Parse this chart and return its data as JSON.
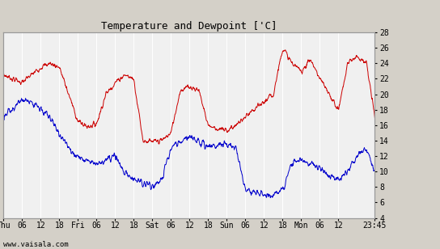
{
  "title": "Temperature and Dewpoint ['C]",
  "yticks": [
    4,
    6,
    8,
    10,
    12,
    14,
    16,
    18,
    20,
    22,
    24,
    26,
    28
  ],
  "ylim": [
    4,
    28
  ],
  "bg_color": "#d4d0c8",
  "plot_bg": "#f0f0f0",
  "grid_color": "#ffffff",
  "temp_color": "#cc0000",
  "dew_color": "#0000cc",
  "footer": "www.vaisala.com",
  "xtick_labels": [
    "Thu",
    "06",
    "12",
    "18",
    "Fri",
    "06",
    "12",
    "18",
    "Sat",
    "06",
    "12",
    "18",
    "Sun",
    "06",
    "12",
    "18",
    "Mon",
    "06",
    "12",
    "23:45"
  ],
  "xtick_positions": [
    0,
    6,
    12,
    18,
    24,
    30,
    36,
    42,
    48,
    54,
    60,
    66,
    72,
    78,
    84,
    90,
    96,
    102,
    108,
    119.75
  ],
  "xlim": [
    0,
    119.75
  ],
  "total_hours": 119.75,
  "temp_ctrl_t": [
    0,
    3,
    6,
    9,
    12,
    15,
    18,
    21,
    24,
    27,
    30,
    33,
    36,
    39,
    42,
    45,
    48,
    51,
    54,
    57,
    60,
    63,
    66,
    69,
    72,
    75,
    78,
    81,
    84,
    87,
    90,
    93,
    96,
    99,
    102,
    105,
    108,
    111,
    114,
    117,
    119.75
  ],
  "temp_ctrl_v": [
    22.5,
    22.0,
    21.5,
    22.5,
    23.5,
    24.0,
    23.5,
    20.0,
    16.5,
    15.8,
    16.2,
    20.0,
    21.5,
    22.5,
    22.0,
    14.0,
    13.8,
    14.0,
    15.0,
    20.5,
    21.0,
    20.5,
    16.0,
    15.5,
    15.3,
    16.0,
    17.0,
    18.0,
    19.0,
    20.0,
    26.0,
    24.0,
    23.0,
    24.5,
    22.0,
    20.0,
    18.0,
    24.0,
    25.0,
    24.0,
    17.0
  ],
  "dew_ctrl_t": [
    0,
    3,
    6,
    9,
    12,
    15,
    18,
    21,
    24,
    27,
    30,
    33,
    36,
    39,
    42,
    45,
    48,
    51,
    54,
    57,
    60,
    63,
    66,
    69,
    72,
    75,
    78,
    81,
    84,
    87,
    90,
    93,
    96,
    99,
    102,
    105,
    108,
    111,
    114,
    117,
    119.75
  ],
  "dew_ctrl_v": [
    17.0,
    18.0,
    19.5,
    19.0,
    18.0,
    17.0,
    15.0,
    13.0,
    12.0,
    11.5,
    11.0,
    11.5,
    12.0,
    10.0,
    9.0,
    8.5,
    8.2,
    9.0,
    13.0,
    13.8,
    14.5,
    14.0,
    13.0,
    13.5,
    13.5,
    13.0,
    7.5,
    7.3,
    6.8,
    7.0,
    7.5,
    11.0,
    11.5,
    11.0,
    10.5,
    9.5,
    9.0,
    10.0,
    12.0,
    13.0,
    10.0
  ]
}
